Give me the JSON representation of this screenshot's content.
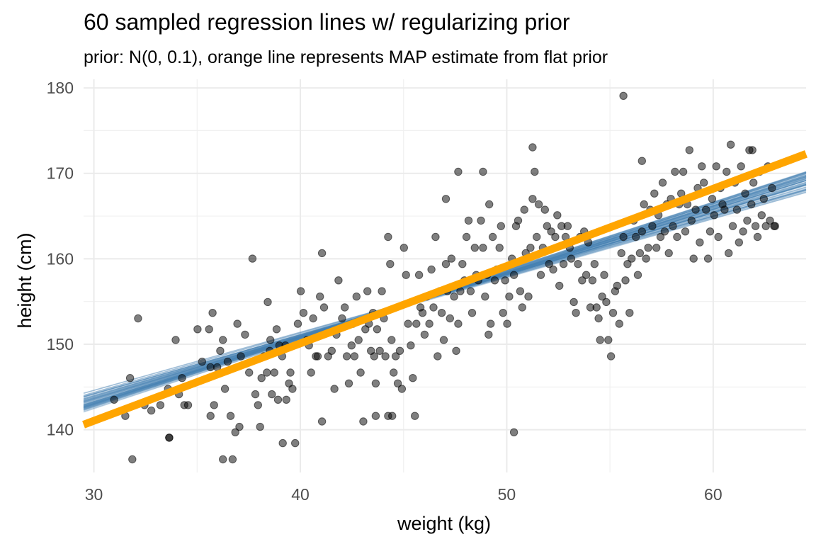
{
  "chart_data": {
    "type": "scatter",
    "title": "60 sampled regression lines w/ regularizing prior",
    "subtitle": "prior: N(0, 0.1), orange line represents MAP estimate from flat prior",
    "xlabel": "weight (kg)",
    "ylabel": "height (cm)",
    "xlim": [
      29.5,
      64.5
    ],
    "ylim": [
      135,
      181
    ],
    "x_ticks": [
      30,
      40,
      50,
      60
    ],
    "y_ticks": [
      140,
      150,
      160,
      170,
      180
    ],
    "grid": true,
    "point_color": "#000000",
    "sample_line_color": "#4682b4",
    "map_line_color": "#ffa500",
    "map_line": {
      "intercept": 113.9,
      "slope": 0.905
    },
    "sampled_lines": {
      "count": 60,
      "pivot_x": 45,
      "pivot_y": 154.6,
      "slope_min": 0.68,
      "slope_max": 0.8
    },
    "points": [
      [
        30.98,
        143.51
      ],
      [
        31.52,
        141.61
      ],
      [
        31.75,
        146.05
      ],
      [
        31.86,
        136.53
      ],
      [
        32.14,
        153.03
      ],
      [
        32.45,
        142.88
      ],
      [
        32.78,
        142.24
      ],
      [
        33.22,
        142.88
      ],
      [
        33.65,
        139.07
      ],
      [
        33.59,
        144.78
      ],
      [
        33.96,
        150.5
      ],
      [
        34.12,
        144.15
      ],
      [
        34.27,
        146.05
      ],
      [
        34.38,
        142.88
      ],
      [
        34.56,
        142.88
      ],
      [
        35.02,
        151.76
      ],
      [
        35.24,
        147.96
      ],
      [
        35.58,
        151.76
      ],
      [
        35.65,
        147.32
      ],
      [
        35.75,
        153.67
      ],
      [
        35.82,
        142.88
      ],
      [
        35.97,
        147.32
      ],
      [
        36.12,
        149.23
      ],
      [
        36.25,
        150.5
      ],
      [
        36.35,
        144.78
      ],
      [
        36.48,
        147.96
      ],
      [
        36.62,
        141.61
      ],
      [
        36.72,
        136.53
      ],
      [
        36.85,
        139.7
      ],
      [
        36.95,
        152.4
      ],
      [
        37.05,
        140.34
      ],
      [
        37.12,
        148.59
      ],
      [
        37.32,
        151.13
      ],
      [
        37.52,
        146.69
      ],
      [
        37.68,
        160.02
      ],
      [
        37.82,
        144.15
      ],
      [
        37.95,
        142.88
      ],
      [
        38.05,
        140.34
      ],
      [
        38.12,
        146.05
      ],
      [
        38.24,
        148.59
      ],
      [
        38.38,
        146.69
      ],
      [
        38.52,
        149.23
      ],
      [
        38.62,
        144.15
      ],
      [
        38.74,
        146.69
      ],
      [
        38.85,
        151.76
      ],
      [
        38.98,
        149.86
      ],
      [
        38.92,
        143.51
      ],
      [
        38.42,
        154.94
      ],
      [
        38.55,
        150.5
      ],
      [
        39.12,
        148.59
      ],
      [
        39.28,
        149.86
      ],
      [
        39.32,
        143.51
      ],
      [
        39.45,
        145.42
      ],
      [
        39.52,
        146.69
      ],
      [
        39.62,
        144.78
      ],
      [
        39.75,
        138.43
      ],
      [
        39.88,
        152.4
      ],
      [
        40.02,
        156.21
      ],
      [
        40.15,
        153.67
      ],
      [
        40.32,
        150.5
      ],
      [
        40.42,
        149.86
      ],
      [
        40.52,
        146.69
      ],
      [
        40.62,
        153.03
      ],
      [
        40.75,
        148.59
      ],
      [
        40.84,
        148.59
      ],
      [
        40.95,
        155.58
      ],
      [
        41.05,
        160.66
      ],
      [
        41.15,
        154.31
      ],
      [
        41.35,
        148.59
      ],
      [
        41.52,
        149.23
      ],
      [
        41.65,
        144.78
      ],
      [
        41.75,
        151.13
      ],
      [
        41.85,
        157.48
      ],
      [
        42.02,
        153.03
      ],
      [
        42.15,
        154.31
      ],
      [
        42.25,
        148.59
      ],
      [
        42.35,
        145.42
      ],
      [
        42.48,
        149.86
      ],
      [
        42.55,
        152.4
      ],
      [
        42.62,
        148.59
      ],
      [
        42.72,
        155.58
      ],
      [
        42.82,
        150.5
      ],
      [
        42.92,
        146.69
      ],
      [
        43.05,
        140.97
      ],
      [
        43.15,
        151.76
      ],
      [
        43.25,
        156.21
      ],
      [
        43.32,
        152.4
      ],
      [
        43.42,
        149.23
      ],
      [
        43.52,
        153.67
      ],
      [
        43.58,
        148.59
      ],
      [
        43.65,
        145.42
      ],
      [
        43.72,
        151.76
      ],
      [
        43.85,
        149.23
      ],
      [
        43.95,
        156.21
      ],
      [
        44.05,
        153.03
      ],
      [
        44.12,
        148.59
      ],
      [
        44.25,
        162.56
      ],
      [
        44.35,
        159.39
      ],
      [
        44.42,
        150.5
      ],
      [
        44.52,
        146.69
      ],
      [
        44.62,
        148.59
      ],
      [
        44.72,
        145.42
      ],
      [
        44.82,
        149.23
      ],
      [
        44.92,
        144.78
      ],
      [
        45.02,
        161.29
      ],
      [
        45.12,
        158.11
      ],
      [
        45.22,
        152.4
      ],
      [
        45.35,
        149.86
      ],
      [
        45.45,
        146.05
      ],
      [
        45.55,
        141.61
      ],
      [
        45.62,
        152.4
      ],
      [
        45.75,
        158.11
      ],
      [
        45.82,
        154.31
      ],
      [
        45.92,
        153.67
      ],
      [
        46.02,
        151.13
      ],
      [
        46.12,
        155.58
      ],
      [
        46.25,
        152.4
      ],
      [
        46.35,
        158.75
      ],
      [
        46.45,
        154.31
      ],
      [
        46.55,
        162.56
      ],
      [
        46.65,
        148.59
      ],
      [
        46.75,
        156.21
      ],
      [
        46.85,
        153.67
      ],
      [
        46.95,
        150.5
      ],
      [
        47.05,
        159.39
      ],
      [
        47.12,
        156.21
      ],
      [
        47.25,
        153.03
      ],
      [
        47.32,
        160.02
      ],
      [
        47.45,
        155.58
      ],
      [
        47.55,
        149.23
      ],
      [
        47.65,
        152.4
      ],
      [
        47.75,
        156.21
      ],
      [
        47.85,
        159.39
      ],
      [
        47.95,
        157.48
      ],
      [
        48.05,
        162.56
      ],
      [
        48.15,
        164.47
      ],
      [
        48.25,
        156.21
      ],
      [
        48.32,
        153.67
      ],
      [
        48.45,
        161.29
      ],
      [
        48.52,
        158.11
      ],
      [
        48.62,
        157.48
      ],
      [
        48.75,
        164.47
      ],
      [
        48.85,
        161.29
      ],
      [
        48.95,
        155.58
      ],
      [
        49.05,
        158.11
      ],
      [
        49.12,
        151.13
      ],
      [
        49.22,
        152.4
      ],
      [
        49.32,
        162.56
      ],
      [
        49.42,
        157.48
      ],
      [
        49.52,
        158.75
      ],
      [
        49.65,
        161.29
      ],
      [
        49.72,
        163.83
      ],
      [
        49.82,
        153.67
      ],
      [
        49.92,
        157.48
      ],
      [
        50.02,
        152.4
      ],
      [
        50.12,
        155.58
      ],
      [
        50.25,
        160.02
      ],
      [
        50.35,
        158.11
      ],
      [
        50.45,
        163.83
      ],
      [
        50.55,
        164.47
      ],
      [
        50.65,
        156.21
      ],
      [
        50.75,
        154.31
      ],
      [
        50.85,
        165.74
      ],
      [
        50.92,
        160.66
      ],
      [
        51.05,
        155.58
      ],
      [
        51.15,
        161.29
      ],
      [
        51.25,
        167.01
      ],
      [
        51.35,
        170.18
      ],
      [
        51.45,
        162.56
      ],
      [
        51.55,
        166.37
      ],
      [
        51.65,
        158.11
      ],
      [
        51.75,
        161.29
      ],
      [
        51.85,
        165.74
      ],
      [
        51.95,
        163.83
      ],
      [
        52.05,
        159.39
      ],
      [
        52.15,
        163.2
      ],
      [
        52.25,
        158.75
      ],
      [
        52.35,
        162.56
      ],
      [
        52.45,
        165.1
      ],
      [
        52.55,
        156.85
      ],
      [
        52.65,
        163.83
      ],
      [
        52.75,
        159.39
      ],
      [
        52.85,
        162.56
      ],
      [
        52.95,
        163.83
      ],
      [
        53.05,
        161.29
      ],
      [
        53.12,
        160.02
      ],
      [
        53.25,
        154.94
      ],
      [
        53.35,
        153.67
      ],
      [
        53.45,
        159.39
      ],
      [
        53.55,
        162.56
      ],
      [
        53.65,
        157.48
      ],
      [
        53.75,
        163.2
      ],
      [
        53.85,
        158.11
      ],
      [
        53.95,
        161.92
      ],
      [
        54.05,
        154.31
      ],
      [
        54.15,
        157.48
      ],
      [
        54.25,
        159.39
      ],
      [
        54.35,
        154.31
      ],
      [
        54.45,
        153.03
      ],
      [
        54.52,
        150.5
      ],
      [
        54.62,
        155.58
      ],
      [
        54.72,
        158.11
      ],
      [
        54.82,
        154.94
      ],
      [
        54.92,
        150.5
      ],
      [
        55.05,
        148.59
      ],
      [
        55.15,
        153.67
      ],
      [
        55.25,
        156.21
      ],
      [
        55.35,
        156.85
      ],
      [
        55.45,
        152.4
      ],
      [
        55.55,
        160.66
      ],
      [
        55.65,
        162.56
      ],
      [
        55.75,
        157.48
      ],
      [
        55.85,
        159.39
      ],
      [
        55.95,
        153.67
      ],
      [
        56.05,
        160.02
      ],
      [
        56.15,
        164.47
      ],
      [
        56.25,
        162.56
      ],
      [
        56.35,
        158.11
      ],
      [
        56.45,
        160.66
      ],
      [
        56.55,
        163.2
      ],
      [
        56.65,
        166.37
      ],
      [
        56.75,
        160.02
      ],
      [
        56.85,
        161.29
      ],
      [
        56.95,
        165.74
      ],
      [
        57.05,
        163.83
      ],
      [
        57.15,
        167.64
      ],
      [
        57.25,
        161.29
      ],
      [
        57.35,
        165.1
      ],
      [
        57.45,
        162.56
      ],
      [
        57.55,
        168.91
      ],
      [
        57.65,
        163.2
      ],
      [
        57.75,
        166.37
      ],
      [
        57.85,
        160.66
      ],
      [
        57.95,
        167.01
      ],
      [
        58.05,
        163.83
      ],
      [
        58.15,
        170.18
      ],
      [
        58.25,
        162.56
      ],
      [
        58.35,
        166.37
      ],
      [
        58.45,
        167.64
      ],
      [
        58.55,
        170.18
      ],
      [
        58.65,
        163.2
      ],
      [
        58.75,
        166.37
      ],
      [
        58.85,
        172.72
      ],
      [
        58.95,
        164.47
      ],
      [
        59.05,
        160.02
      ],
      [
        59.15,
        165.74
      ],
      [
        59.25,
        168.28
      ],
      [
        59.35,
        161.92
      ],
      [
        59.45,
        170.82
      ],
      [
        59.55,
        168.91
      ],
      [
        59.65,
        165.74
      ],
      [
        59.75,
        160.02
      ],
      [
        59.85,
        163.2
      ],
      [
        59.95,
        167.01
      ],
      [
        60.05,
        165.1
      ],
      [
        60.15,
        170.82
      ],
      [
        60.25,
        162.56
      ],
      [
        60.35,
        168.28
      ],
      [
        60.45,
        166.37
      ],
      [
        60.55,
        165.74
      ],
      [
        60.65,
        170.18
      ],
      [
        60.75,
        160.66
      ],
      [
        60.85,
        173.36
      ],
      [
        60.95,
        163.83
      ],
      [
        61.05,
        168.91
      ],
      [
        61.15,
        165.74
      ],
      [
        61.25,
        161.92
      ],
      [
        61.35,
        170.82
      ],
      [
        61.45,
        163.2
      ],
      [
        61.55,
        167.64
      ],
      [
        61.65,
        164.47
      ],
      [
        61.75,
        172.72
      ],
      [
        61.85,
        166.37
      ],
      [
        61.95,
        168.91
      ],
      [
        62.05,
        163.83
      ],
      [
        62.15,
        162.56
      ],
      [
        62.25,
        170.18
      ],
      [
        62.35,
        165.1
      ],
      [
        62.45,
        167.01
      ],
      [
        62.55,
        163.83
      ],
      [
        62.65,
        170.82
      ],
      [
        62.75,
        164.47
      ],
      [
        62.85,
        168.28
      ],
      [
        62.95,
        163.83
      ],
      [
        55.65,
        179.07
      ],
      [
        51.25,
        173.04
      ],
      [
        61.9,
        172.72
      ],
      [
        63.0,
        163.83
      ],
      [
        47.65,
        170.18
      ],
      [
        48.85,
        170.18
      ],
      [
        56.55,
        171.45
      ],
      [
        47.05,
        167.01
      ],
      [
        49.15,
        166.37
      ],
      [
        50.35,
        139.7
      ],
      [
        39.15,
        138.43
      ],
      [
        36.25,
        136.53
      ],
      [
        35.65,
        141.61
      ],
      [
        33.65,
        139.07
      ],
      [
        41.05,
        140.97
      ],
      [
        43.65,
        141.61
      ],
      [
        44.25,
        141.61
      ],
      [
        44.45,
        141.61
      ]
    ]
  }
}
